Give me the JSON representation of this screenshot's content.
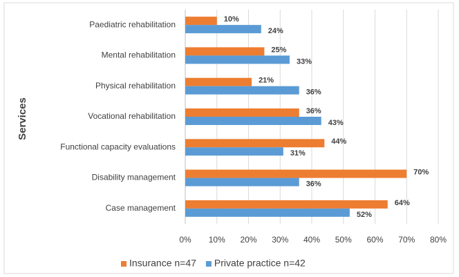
{
  "chart_data": {
    "type": "barh",
    "y_label": "Services",
    "categories": [
      "Paediatric rehabilitation",
      "Mental rehabilitation",
      "Physical rehabilitation",
      "Vocational rehabilitation",
      "Functional capacity evaluations",
      "Disability management",
      "Case management"
    ],
    "series": [
      {
        "name": "Insurance n=47",
        "color": "#ed7d31",
        "values": [
          10,
          25,
          21,
          36,
          44,
          70,
          64
        ],
        "value_labels": [
          "10%",
          "25%",
          "21%",
          "36%",
          "44%",
          "70%",
          "64%"
        ]
      },
      {
        "name": "Private practice n=42",
        "color": "#5b9bd5",
        "values": [
          24,
          33,
          36,
          43,
          31,
          36,
          52
        ],
        "value_labels": [
          "24%",
          "33%",
          "36%",
          "43%",
          "31%",
          "36%",
          "52%"
        ]
      }
    ],
    "xlim": [
      0,
      80
    ],
    "xticks": [
      {
        "value": 0,
        "label": "0%"
      },
      {
        "value": 10,
        "label": "10%"
      },
      {
        "value": 20,
        "label": "20%"
      },
      {
        "value": 30,
        "label": "30%"
      },
      {
        "value": 40,
        "label": "40%"
      },
      {
        "value": 50,
        "label": "50%"
      },
      {
        "value": 60,
        "label": "60%"
      },
      {
        "value": 70,
        "label": "70%"
      },
      {
        "value": 80,
        "label": "80%"
      }
    ],
    "grid": true,
    "legend": "bottom"
  }
}
